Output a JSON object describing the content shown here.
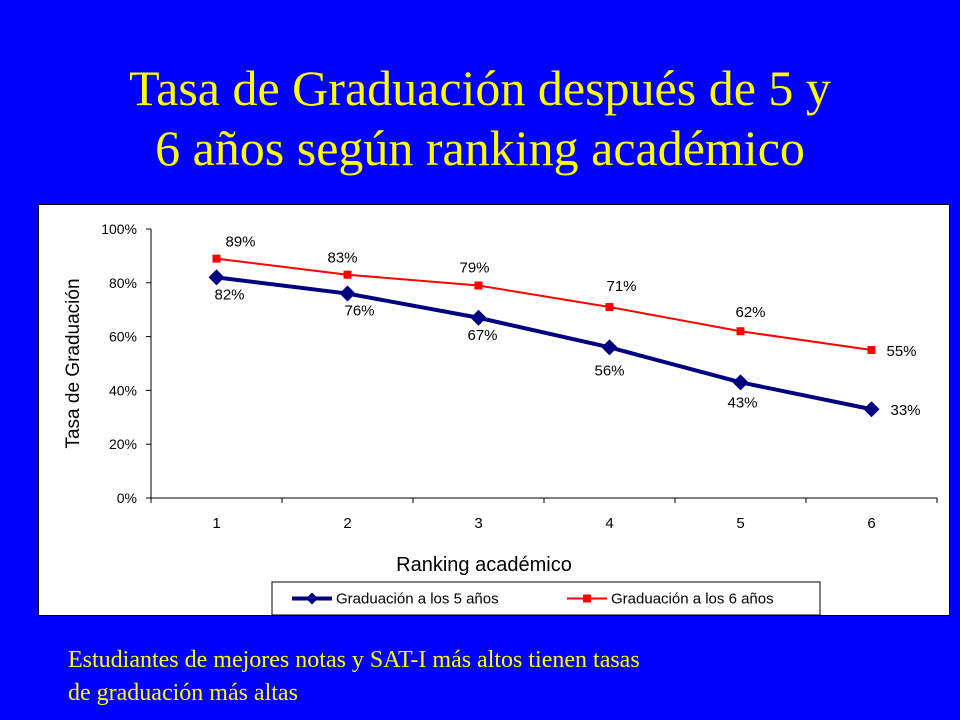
{
  "slide": {
    "title_line1": "Tasa de Graduación después de 5 y",
    "title_line2": "6 años según ranking académico",
    "caption_line1": "Estudiantes de mejores notas y SAT-I más altos tienen tasas",
    "caption_line2": "de graduación más altas"
  },
  "colors": {
    "background": "#0000ff",
    "title": "#ffff00",
    "series_5": "#000080",
    "series_6": "#ff0000"
  },
  "chart_data": {
    "type": "line",
    "xlabel": "Ranking académico",
    "ylabel": "Tasa de Graduación",
    "categories": [
      "1",
      "2",
      "3",
      "4",
      "5",
      "6"
    ],
    "y_ticks": [
      "0%",
      "20%",
      "40%",
      "60%",
      "80%",
      "100%"
    ],
    "ylim": [
      0,
      100
    ],
    "grid": false,
    "legend_position": "bottom",
    "series": [
      {
        "name": "Graduación a los 5 años",
        "values": [
          82,
          76,
          67,
          56,
          43,
          33
        ],
        "labels": [
          "82%",
          "76%",
          "67%",
          "56%",
          "43%",
          "33%"
        ],
        "color": "#000080",
        "marker": "diamond"
      },
      {
        "name": "Graduación a los 6 años",
        "values": [
          89,
          83,
          79,
          71,
          62,
          55
        ],
        "labels": [
          "89%",
          "83%",
          "79%",
          "71%",
          "62%",
          "55%"
        ],
        "color": "#ff0000",
        "marker": "square"
      }
    ]
  }
}
